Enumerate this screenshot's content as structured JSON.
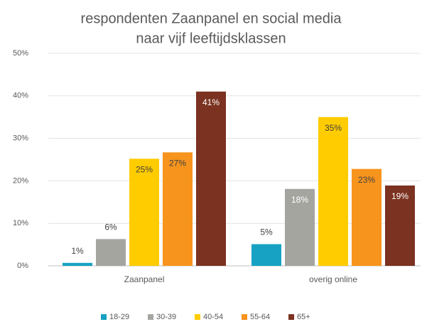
{
  "chart_data": {
    "type": "bar",
    "title": [
      "respondenten Zaanpanel en social media",
      "naar  vijf leeftijdsklassen"
    ],
    "categories": [
      "Zaanpanel",
      "overig online"
    ],
    "series": [
      {
        "name": "18-29",
        "color": "#17a2c4",
        "values": [
          0.7,
          5.1
        ],
        "value_labels": [
          "1%",
          "5%"
        ]
      },
      {
        "name": "30-39",
        "color": "#a5a5a0",
        "values": [
          6.3,
          18.1
        ],
        "value_labels": [
          "6%",
          "18%"
        ]
      },
      {
        "name": "40-54",
        "color": "#ffcc00",
        "values": [
          25.2,
          35
        ],
        "value_labels": [
          "25%",
          "35%"
        ]
      },
      {
        "name": "55-64",
        "color": "#f7941d",
        "values": [
          26.7,
          22.8
        ],
        "value_labels": [
          "27%",
          "23%"
        ]
      },
      {
        "name": "65+",
        "color": "#7b3220",
        "values": [
          41,
          18.9
        ],
        "value_labels": [
          "41%",
          "19%"
        ]
      }
    ],
    "ylim": [
      0,
      50
    ],
    "yticks": [
      {
        "value": 0,
        "label": "0%"
      },
      {
        "value": 10,
        "label": "10%"
      },
      {
        "value": 20,
        "label": "20%"
      },
      {
        "value": 30,
        "label": "30%"
      },
      {
        "value": 40,
        "label": "40%"
      },
      {
        "value": 50,
        "label": "50%"
      }
    ],
    "grid": true,
    "legend": "bottom"
  }
}
